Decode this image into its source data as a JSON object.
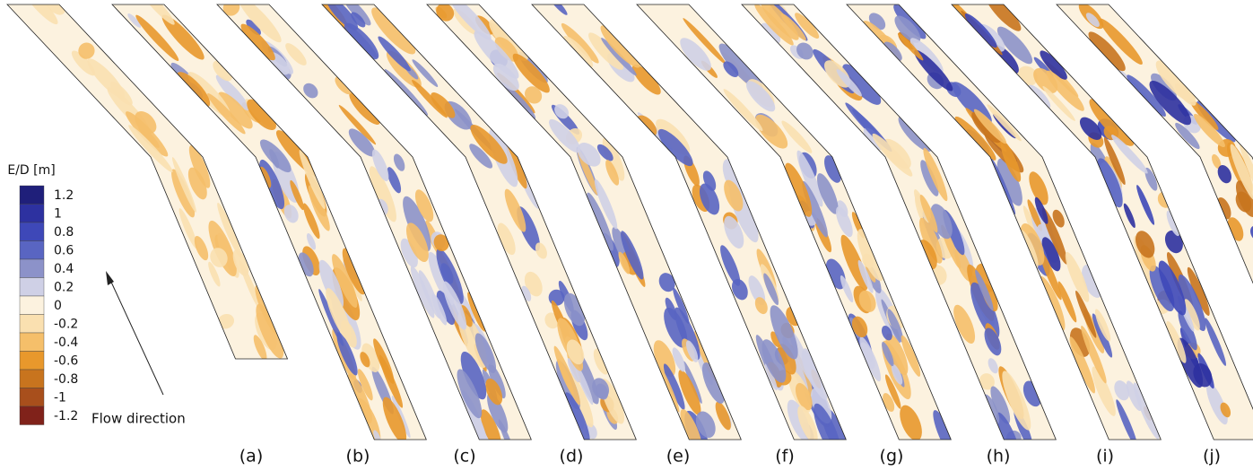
{
  "colorbar": {
    "title": "E/D [m]",
    "levels": [
      {
        "label": "1.2",
        "color": "#1f1f7a"
      },
      {
        "label": "1",
        "color": "#2d31a0"
      },
      {
        "label": "0.8",
        "color": "#3e48b8"
      },
      {
        "label": "0.6",
        "color": "#5965c2"
      },
      {
        "label": "0.4",
        "color": "#8c92c9"
      },
      {
        "label": "0.2",
        "color": "#cfd0e6"
      },
      {
        "label": "0",
        "color": "#fcf2df"
      },
      {
        "label": "-0.2",
        "color": "#fae0b0"
      },
      {
        "label": "-0.4",
        "color": "#f5bf6a"
      },
      {
        "label": "-0.6",
        "color": "#e8982c"
      },
      {
        "label": "-0.8",
        "color": "#c8741e"
      },
      {
        "label": "-1",
        "color": "#a84f1c"
      },
      {
        "label": "-1.2",
        "color": "#80221a"
      }
    ]
  },
  "annotation": "Flow direction",
  "panels": [
    "(a)",
    "(b)",
    "(c)",
    "(d)",
    "(e)",
    "(f)",
    "(g)",
    "(h)",
    "(i)",
    "(j)"
  ]
}
